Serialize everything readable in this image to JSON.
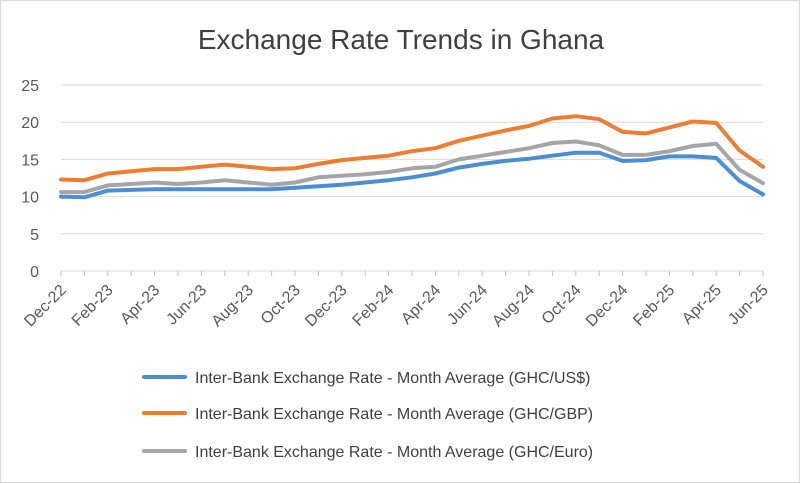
{
  "chart_data": {
    "type": "line",
    "title": "Exchange Rate Trends in Ghana",
    "xlabel": "",
    "ylabel": "",
    "ylim": [
      0,
      25
    ],
    "y_ticks": [
      0,
      5,
      10,
      15,
      20,
      25
    ],
    "grid": "horizontal",
    "legend_position": "bottom",
    "categories": [
      "Dec-22",
      "Jan-23",
      "Feb-23",
      "Mar-23",
      "Apr-23",
      "May-23",
      "Jun-23",
      "Jul-23",
      "Aug-23",
      "Sep-23",
      "Oct-23",
      "Nov-23",
      "Dec-23",
      "Jan-24",
      "Feb-24",
      "Mar-24",
      "Apr-24",
      "May-24",
      "Jun-24",
      "Jul-24",
      "Aug-24",
      "Sep-24",
      "Oct-24",
      "Nov-24",
      "Dec-24",
      "Jan-25",
      "Feb-25",
      "Mar-25",
      "Apr-25",
      "May-25",
      "Jun-25"
    ],
    "x_tick_labels": [
      "Dec-22",
      "Feb-23",
      "Apr-23",
      "Jun-23",
      "Aug-23",
      "Oct-23",
      "Dec-23",
      "Feb-24",
      "Apr-24",
      "Jun-24",
      "Aug-24",
      "Oct-24",
      "Dec-24",
      "Feb-25",
      "Apr-25",
      "Jun-25"
    ],
    "series": [
      {
        "name": "Inter-Bank Exchange Rate - Month Average (GHC/US$)",
        "color": "#4a8fd4",
        "values": [
          10.0,
          9.9,
          10.8,
          10.9,
          11.0,
          11.0,
          11.0,
          11.0,
          11.0,
          11.0,
          11.2,
          11.4,
          11.6,
          11.9,
          12.2,
          12.6,
          13.1,
          13.9,
          14.4,
          14.8,
          15.1,
          15.5,
          15.9,
          15.9,
          14.8,
          14.9,
          15.4,
          15.4,
          15.2,
          12.1,
          10.3
        ]
      },
      {
        "name": "Inter-Bank Exchange Rate - Month Average (GHC/GBP)",
        "color": "#ed7d31",
        "values": [
          12.3,
          12.2,
          13.1,
          13.4,
          13.7,
          13.7,
          14.0,
          14.3,
          14.0,
          13.7,
          13.8,
          14.4,
          14.9,
          15.2,
          15.5,
          16.1,
          16.5,
          17.5,
          18.2,
          18.9,
          19.5,
          20.5,
          20.8,
          20.4,
          18.7,
          18.5,
          19.3,
          20.1,
          19.9,
          16.2,
          14.0
        ]
      },
      {
        "name": "Inter-Bank Exchange Rate - Month Average (GHC/Euro)",
        "color": "#a5a5a5",
        "values": [
          10.6,
          10.6,
          11.5,
          11.7,
          11.9,
          11.7,
          11.9,
          12.2,
          11.9,
          11.6,
          11.9,
          12.6,
          12.8,
          13.0,
          13.3,
          13.8,
          14.0,
          15.0,
          15.5,
          16.0,
          16.5,
          17.2,
          17.4,
          16.9,
          15.6,
          15.6,
          16.1,
          16.8,
          17.1,
          13.6,
          11.8
        ]
      }
    ]
  }
}
